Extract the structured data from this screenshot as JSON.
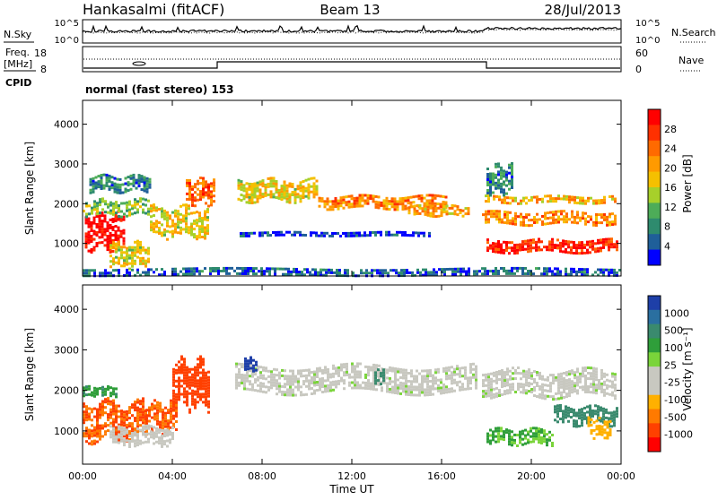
{
  "header": {
    "station": "Hankasalmi (fitACF)",
    "beam": "Beam 13",
    "date": "28/Jul/2013"
  },
  "strip": {
    "nsky_label": "N.Sky",
    "nsearch_label": "N.Search",
    "nsky_ticks": [
      "10^5",
      "10^0"
    ],
    "nsearch_ticks": [
      "10^5",
      "10^0"
    ],
    "freq_label_1": "Freq.",
    "freq_label_2": "[MHz]",
    "freq_ticks": [
      "18",
      "8"
    ],
    "nave_label": "Nave",
    "nave_ticks": [
      "60",
      "0"
    ],
    "cpid_label": "CPID",
    "cpid_text": "normal (fast stereo) 153"
  },
  "x_axis": {
    "label": "Time UT",
    "ticks": [
      "00:00",
      "04:00",
      "08:00",
      "12:00",
      "16:00",
      "20:00",
      "00:00"
    ],
    "range_hours": [
      0,
      24
    ]
  },
  "power_colorbar": {
    "label": "Power [dB]",
    "ticks": [
      "28",
      "24",
      "20",
      "16",
      "12",
      "8",
      "4"
    ],
    "colors": [
      "#ff0000",
      "#ff3000",
      "#ff6a00",
      "#ff9a00",
      "#f5c000",
      "#a7d02a",
      "#4dac58",
      "#2e8b6e",
      "#1f5f99",
      "#0000ff"
    ]
  },
  "velocity_colorbar": {
    "label": "Velocity [m s⁻¹]",
    "ticks": [
      "1000",
      "500",
      "100",
      "25",
      "-25",
      "-100",
      "-500",
      "-1000"
    ],
    "colors": [
      "#1e3fa8",
      "#2a6fa0",
      "#3a8a6e",
      "#2f9e3a",
      "#7ad43a",
      "#c8c8c0",
      "#c8c8c0",
      "#ffb000",
      "#ff7a00",
      "#ff4000",
      "#ff0000"
    ]
  },
  "chart_data": [
    {
      "type": "heatmap",
      "name": "power",
      "title": "",
      "ylabel": "Slant Range [km]",
      "xlabel": "",
      "y_ticks": [
        1000,
        2000,
        3000,
        4000
      ],
      "ylim": [
        180,
        4600
      ],
      "xlim_hours": [
        0,
        24
      ],
      "scale": [
        4,
        30
      ],
      "bands": [
        {
          "t0": 0.1,
          "t1": 1.8,
          "r0": 900,
          "r1": 1750,
          "v": 29
        },
        {
          "t0": 0.0,
          "t1": 3.0,
          "r0": 1700,
          "r1": 2100,
          "v": 14
        },
        {
          "t0": 0.3,
          "t1": 3.0,
          "r0": 2300,
          "r1": 2700,
          "v": 10
        },
        {
          "t0": 1.2,
          "t1": 3.0,
          "r0": 400,
          "r1": 1000,
          "v": 18
        },
        {
          "t0": 3.0,
          "t1": 5.6,
          "r0": 1200,
          "r1": 1900,
          "v": 18
        },
        {
          "t0": 4.6,
          "t1": 5.9,
          "r0": 2000,
          "r1": 2600,
          "v": 24
        },
        {
          "t0": 6.9,
          "t1": 10.5,
          "r0": 2100,
          "r1": 2600,
          "v": 18
        },
        {
          "t0": 10.5,
          "t1": 16.2,
          "r0": 1900,
          "r1": 2200,
          "v": 22
        },
        {
          "t0": 7.0,
          "t1": 15.5,
          "r0": 1200,
          "r1": 1300,
          "v": 6
        },
        {
          "t0": 14.5,
          "t1": 17.2,
          "r0": 1700,
          "r1": 1950,
          "v": 20
        },
        {
          "t0": 17.8,
          "t1": 23.8,
          "r0": 1500,
          "r1": 1800,
          "v": 22
        },
        {
          "t0": 17.8,
          "t1": 23.8,
          "r0": 2000,
          "r1": 2200,
          "v": 20
        },
        {
          "t0": 18.0,
          "t1": 23.8,
          "r0": 800,
          "r1": 1100,
          "v": 27
        },
        {
          "t0": 18.0,
          "t1": 19.2,
          "r0": 2300,
          "r1": 2950,
          "v": 10
        },
        {
          "t0": 0.0,
          "t1": 24.0,
          "r0": 200,
          "r1": 380,
          "v": 8
        }
      ]
    },
    {
      "type": "heatmap",
      "name": "velocity",
      "title": "",
      "ylabel": "Slant Range [km]",
      "xlabel": "Time UT",
      "y_ticks": [
        1000,
        2000,
        3000,
        4000
      ],
      "ylim": [
        180,
        4600
      ],
      "xlim_hours": [
        0,
        24
      ],
      "scale": [
        -1000,
        1000
      ],
      "bands": [
        {
          "t0": 0.0,
          "t1": 2.8,
          "r0": 800,
          "r1": 1700,
          "v": -500
        },
        {
          "t0": 2.8,
          "t1": 4.2,
          "r0": 1000,
          "r1": 1700,
          "v": -500
        },
        {
          "t0": 4.0,
          "t1": 5.6,
          "r0": 1600,
          "r1": 2700,
          "v": -700
        },
        {
          "t0": 0.0,
          "t1": 1.5,
          "r0": 1900,
          "r1": 2100,
          "v": 80
        },
        {
          "t0": 1.2,
          "t1": 4.0,
          "r0": 700,
          "r1": 1100,
          "v": -60
        },
        {
          "t0": 6.8,
          "t1": 17.5,
          "r0": 2000,
          "r1": 2600,
          "v": 0
        },
        {
          "t0": 7.2,
          "t1": 7.8,
          "r0": 2500,
          "r1": 2800,
          "v": 600
        },
        {
          "t0": 13.0,
          "t1": 13.4,
          "r0": 2200,
          "r1": 2500,
          "v": 150
        },
        {
          "t0": 17.8,
          "t1": 23.8,
          "r0": 1900,
          "r1": 2500,
          "v": 0
        },
        {
          "t0": 18.0,
          "t1": 21.0,
          "r0": 700,
          "r1": 1050,
          "v": 60
        },
        {
          "t0": 21.0,
          "t1": 23.8,
          "r0": 1200,
          "r1": 1600,
          "v": 150
        },
        {
          "t0": 22.5,
          "t1": 23.5,
          "r0": 900,
          "r1": 1300,
          "v": -150
        }
      ]
    }
  ]
}
